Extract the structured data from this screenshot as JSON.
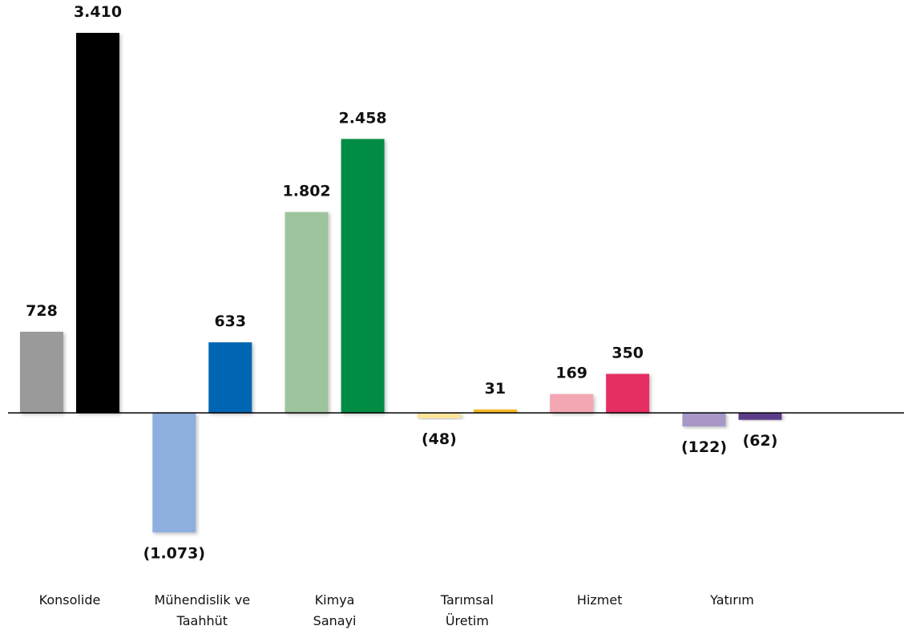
{
  "chart_data": {
    "type": "bar",
    "categories": [
      [
        "Konsolide"
      ],
      [
        "Mühendislik ve",
        "Taahhüt"
      ],
      [
        "Kimya",
        "Sanayi"
      ],
      [
        "Tarımsal",
        "Üretim"
      ],
      [
        "Hizmet"
      ],
      [
        "Yatırım"
      ]
    ],
    "series": [
      {
        "values": [
          728,
          -1073,
          1802,
          -48,
          169,
          -122
        ],
        "value_labels": [
          "728",
          "(1.073)",
          "1.802",
          "(48)",
          "169",
          "(122)"
        ],
        "colors": [
          "#9a9a9a",
          "#8eaedd",
          "#9dc49d",
          "#fde49a",
          "#f2a7b3",
          "#a997c6"
        ]
      },
      {
        "values": [
          3410,
          633,
          2458,
          31,
          350,
          -62
        ],
        "value_labels": [
          "3.410",
          "633",
          "2.458",
          "31",
          "350",
          "(62)"
        ],
        "colors": [
          "#000000",
          "#0066b3",
          "#008c45",
          "#f5b820",
          "#e52d62",
          "#5b3e8a"
        ]
      }
    ],
    "ylim": [
      -1600,
      3500
    ]
  }
}
